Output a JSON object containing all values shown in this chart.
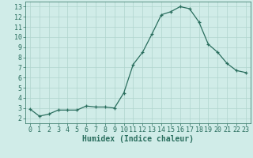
{
  "x": [
    0,
    1,
    2,
    3,
    4,
    5,
    6,
    7,
    8,
    9,
    10,
    11,
    12,
    13,
    14,
    15,
    16,
    17,
    18,
    19,
    20,
    21,
    22,
    23
  ],
  "y": [
    2.9,
    2.2,
    2.4,
    2.8,
    2.8,
    2.8,
    3.2,
    3.1,
    3.1,
    3.0,
    4.5,
    7.3,
    8.5,
    10.3,
    12.2,
    12.5,
    13.0,
    12.8,
    11.5,
    9.3,
    8.5,
    7.4,
    6.7,
    6.5
  ],
  "line_color": "#2a6e5e",
  "marker_color": "#2a6e5e",
  "bg_color": "#d0ece8",
  "grid_color": "#b0d4ce",
  "xlabel": "Humidex (Indice chaleur)",
  "xlabel_fontsize": 7,
  "tick_fontsize": 6,
  "ylim": [
    1.5,
    13.5
  ],
  "xlim": [
    -0.5,
    23.5
  ],
  "yticks": [
    2,
    3,
    4,
    5,
    6,
    7,
    8,
    9,
    10,
    11,
    12,
    13
  ],
  "xticks": [
    0,
    1,
    2,
    3,
    4,
    5,
    6,
    7,
    8,
    9,
    10,
    11,
    12,
    13,
    14,
    15,
    16,
    17,
    18,
    19,
    20,
    21,
    22,
    23
  ]
}
